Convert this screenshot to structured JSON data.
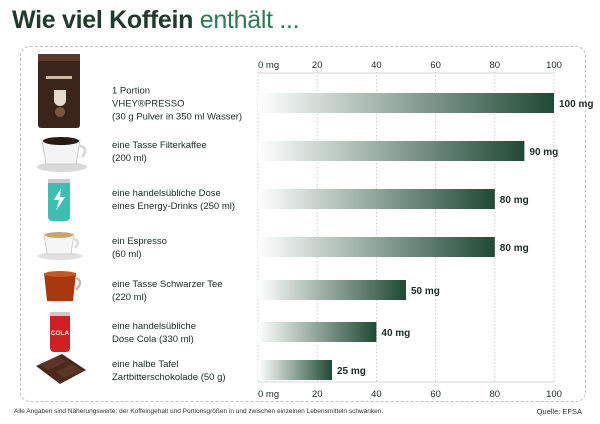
{
  "title": {
    "bold": "Wie viel Koffein",
    "light": "enthält ..."
  },
  "footnote": "Alle Angaben sind Näherungswerte; der Koffeingehalt und Portionsgrößen in und zwischen einzelnen Lebensmitteln schwanken.",
  "source": "Quelle: EFSA",
  "colors": {
    "bar_dark": "#1f4a35",
    "bar_light": "#ffffff",
    "title_accent": "#2f7a56"
  },
  "chart_data": {
    "type": "bar",
    "orientation": "horizontal",
    "xlim": [
      0,
      100
    ],
    "ticks": [
      "0 mg",
      "20",
      "40",
      "60",
      "80",
      "100"
    ],
    "tick_values": [
      0,
      20,
      40,
      60,
      80,
      100
    ],
    "grid": true,
    "categories": [
      {
        "lines": [
          "1  Portion",
          "VHEY®PRESSO",
          "(30 g Pulver in 350 ml Wasser)"
        ],
        "value": 100,
        "label": "100 mg",
        "icon": "vheypresso-pack-icon"
      },
      {
        "lines": [
          "eine Tasse Filterkaffee",
          "(200 ml)"
        ],
        "value": 90,
        "label": "90 mg",
        "icon": "coffee-cup-icon"
      },
      {
        "lines": [
          "eine handelsübliche Dose",
          "eines Energy-Drinks (250 ml)"
        ],
        "value": 80,
        "label": "80 mg",
        "icon": "energy-drink-can-icon"
      },
      {
        "lines": [
          "ein Espresso",
          "(60 ml)"
        ],
        "value": 80,
        "label": "80 mg",
        "icon": "espresso-cup-icon"
      },
      {
        "lines": [
          "eine Tasse Schwarzer Tee",
          "(220 ml)"
        ],
        "value": 50,
        "label": "50 mg",
        "icon": "tea-glass-icon"
      },
      {
        "lines": [
          "eine handelsübliche",
          "Dose Cola (330 ml)"
        ],
        "value": 40,
        "label": "40 mg",
        "icon": "cola-can-icon"
      },
      {
        "lines": [
          "eine halbe Tafel",
          "Zartbitterschokolade (50 g)"
        ],
        "value": 25,
        "label": "25 mg",
        "icon": "chocolate-bar-icon"
      }
    ],
    "icon_texts": {
      "cola": "COLA"
    }
  }
}
